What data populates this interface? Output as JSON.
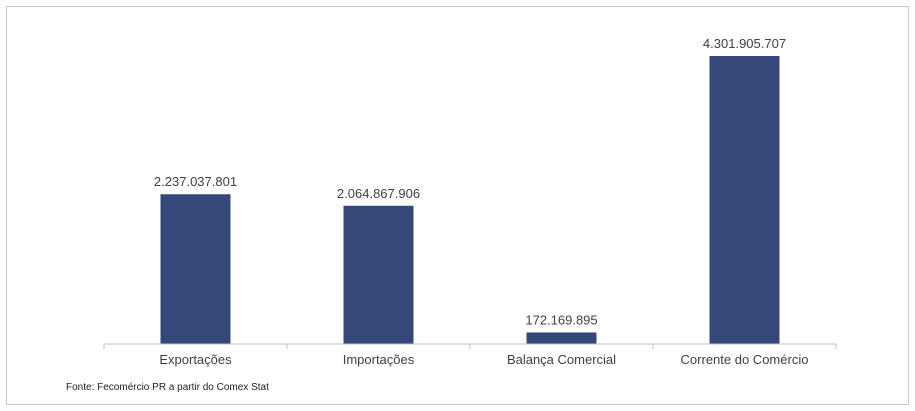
{
  "source_note": "Fonte: Fecomércio PR a partir do Comex Stat",
  "colors": {
    "bar": "#34497a",
    "axis": "#bfbfbf",
    "text": "#404040",
    "border": "#c8c8c8"
  },
  "chart_data": {
    "type": "bar",
    "categories": [
      "Exportações",
      "Importações",
      "Balança Comercial",
      "Corrente do Comércio"
    ],
    "values": [
      2237037801,
      2064867906,
      172169895,
      4301905707
    ],
    "value_labels": [
      "2.237.037.801",
      "2.064.867.906",
      "172.169.895",
      "4.301.905.707"
    ],
    "title": "",
    "xlabel": "",
    "ylabel": "",
    "ylim": [
      0,
      4301905707
    ],
    "grid": false,
    "legend": "none"
  }
}
